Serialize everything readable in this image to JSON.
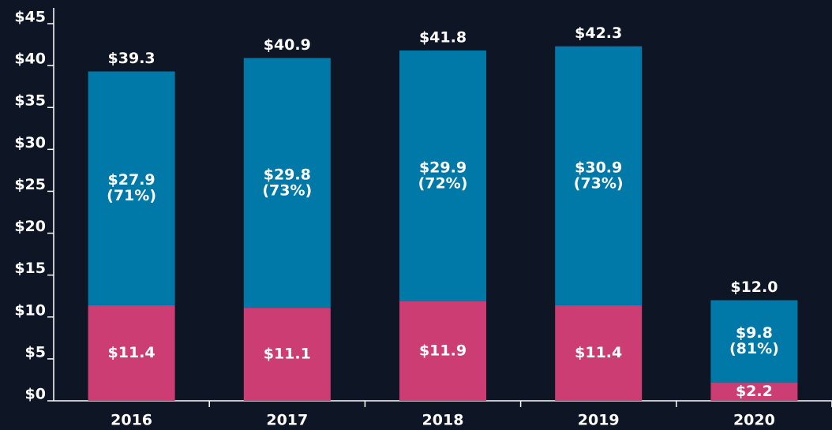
{
  "chart_data": {
    "type": "stacked_bar",
    "categories": [
      "2016",
      "2017",
      "2018",
      "2019",
      "2020"
    ],
    "series": [
      {
        "color": "#cc3d74",
        "values": [
          11.4,
          11.1,
          11.9,
          11.4,
          2.2
        ],
        "value_labels": [
          "$11.4",
          "$11.1",
          "$11.9",
          "$11.4",
          "$2.2"
        ]
      },
      {
        "color": "#0079a8",
        "values": [
          27.9,
          29.8,
          29.9,
          30.9,
          9.8
        ],
        "value_labels": [
          "$27.9",
          "$29.8",
          "$29.9",
          "$30.9",
          "$9.8"
        ],
        "share_labels": [
          "(71%)",
          "(73%)",
          "(72%)",
          "(73%)",
          "(81%)"
        ]
      }
    ],
    "totals": [
      39.3,
      40.9,
      41.8,
      42.3,
      12.0
    ],
    "total_labels": [
      "$39.3",
      "$40.9",
      "$41.8",
      "$42.3",
      "$12.0"
    ],
    "ylim": [
      0,
      45
    ],
    "yticks": [
      {
        "value": 0,
        "label": "$0"
      },
      {
        "value": 5,
        "label": "$5"
      },
      {
        "value": 10,
        "label": "$10"
      },
      {
        "value": 15,
        "label": "$15"
      },
      {
        "value": 20,
        "label": "$20"
      },
      {
        "value": 25,
        "label": "$25"
      },
      {
        "value": 30,
        "label": "$30"
      },
      {
        "value": 35,
        "label": "$35"
      },
      {
        "value": 40,
        "label": "$40"
      },
      {
        "value": 45,
        "label": "$45"
      }
    ],
    "grid": false
  }
}
